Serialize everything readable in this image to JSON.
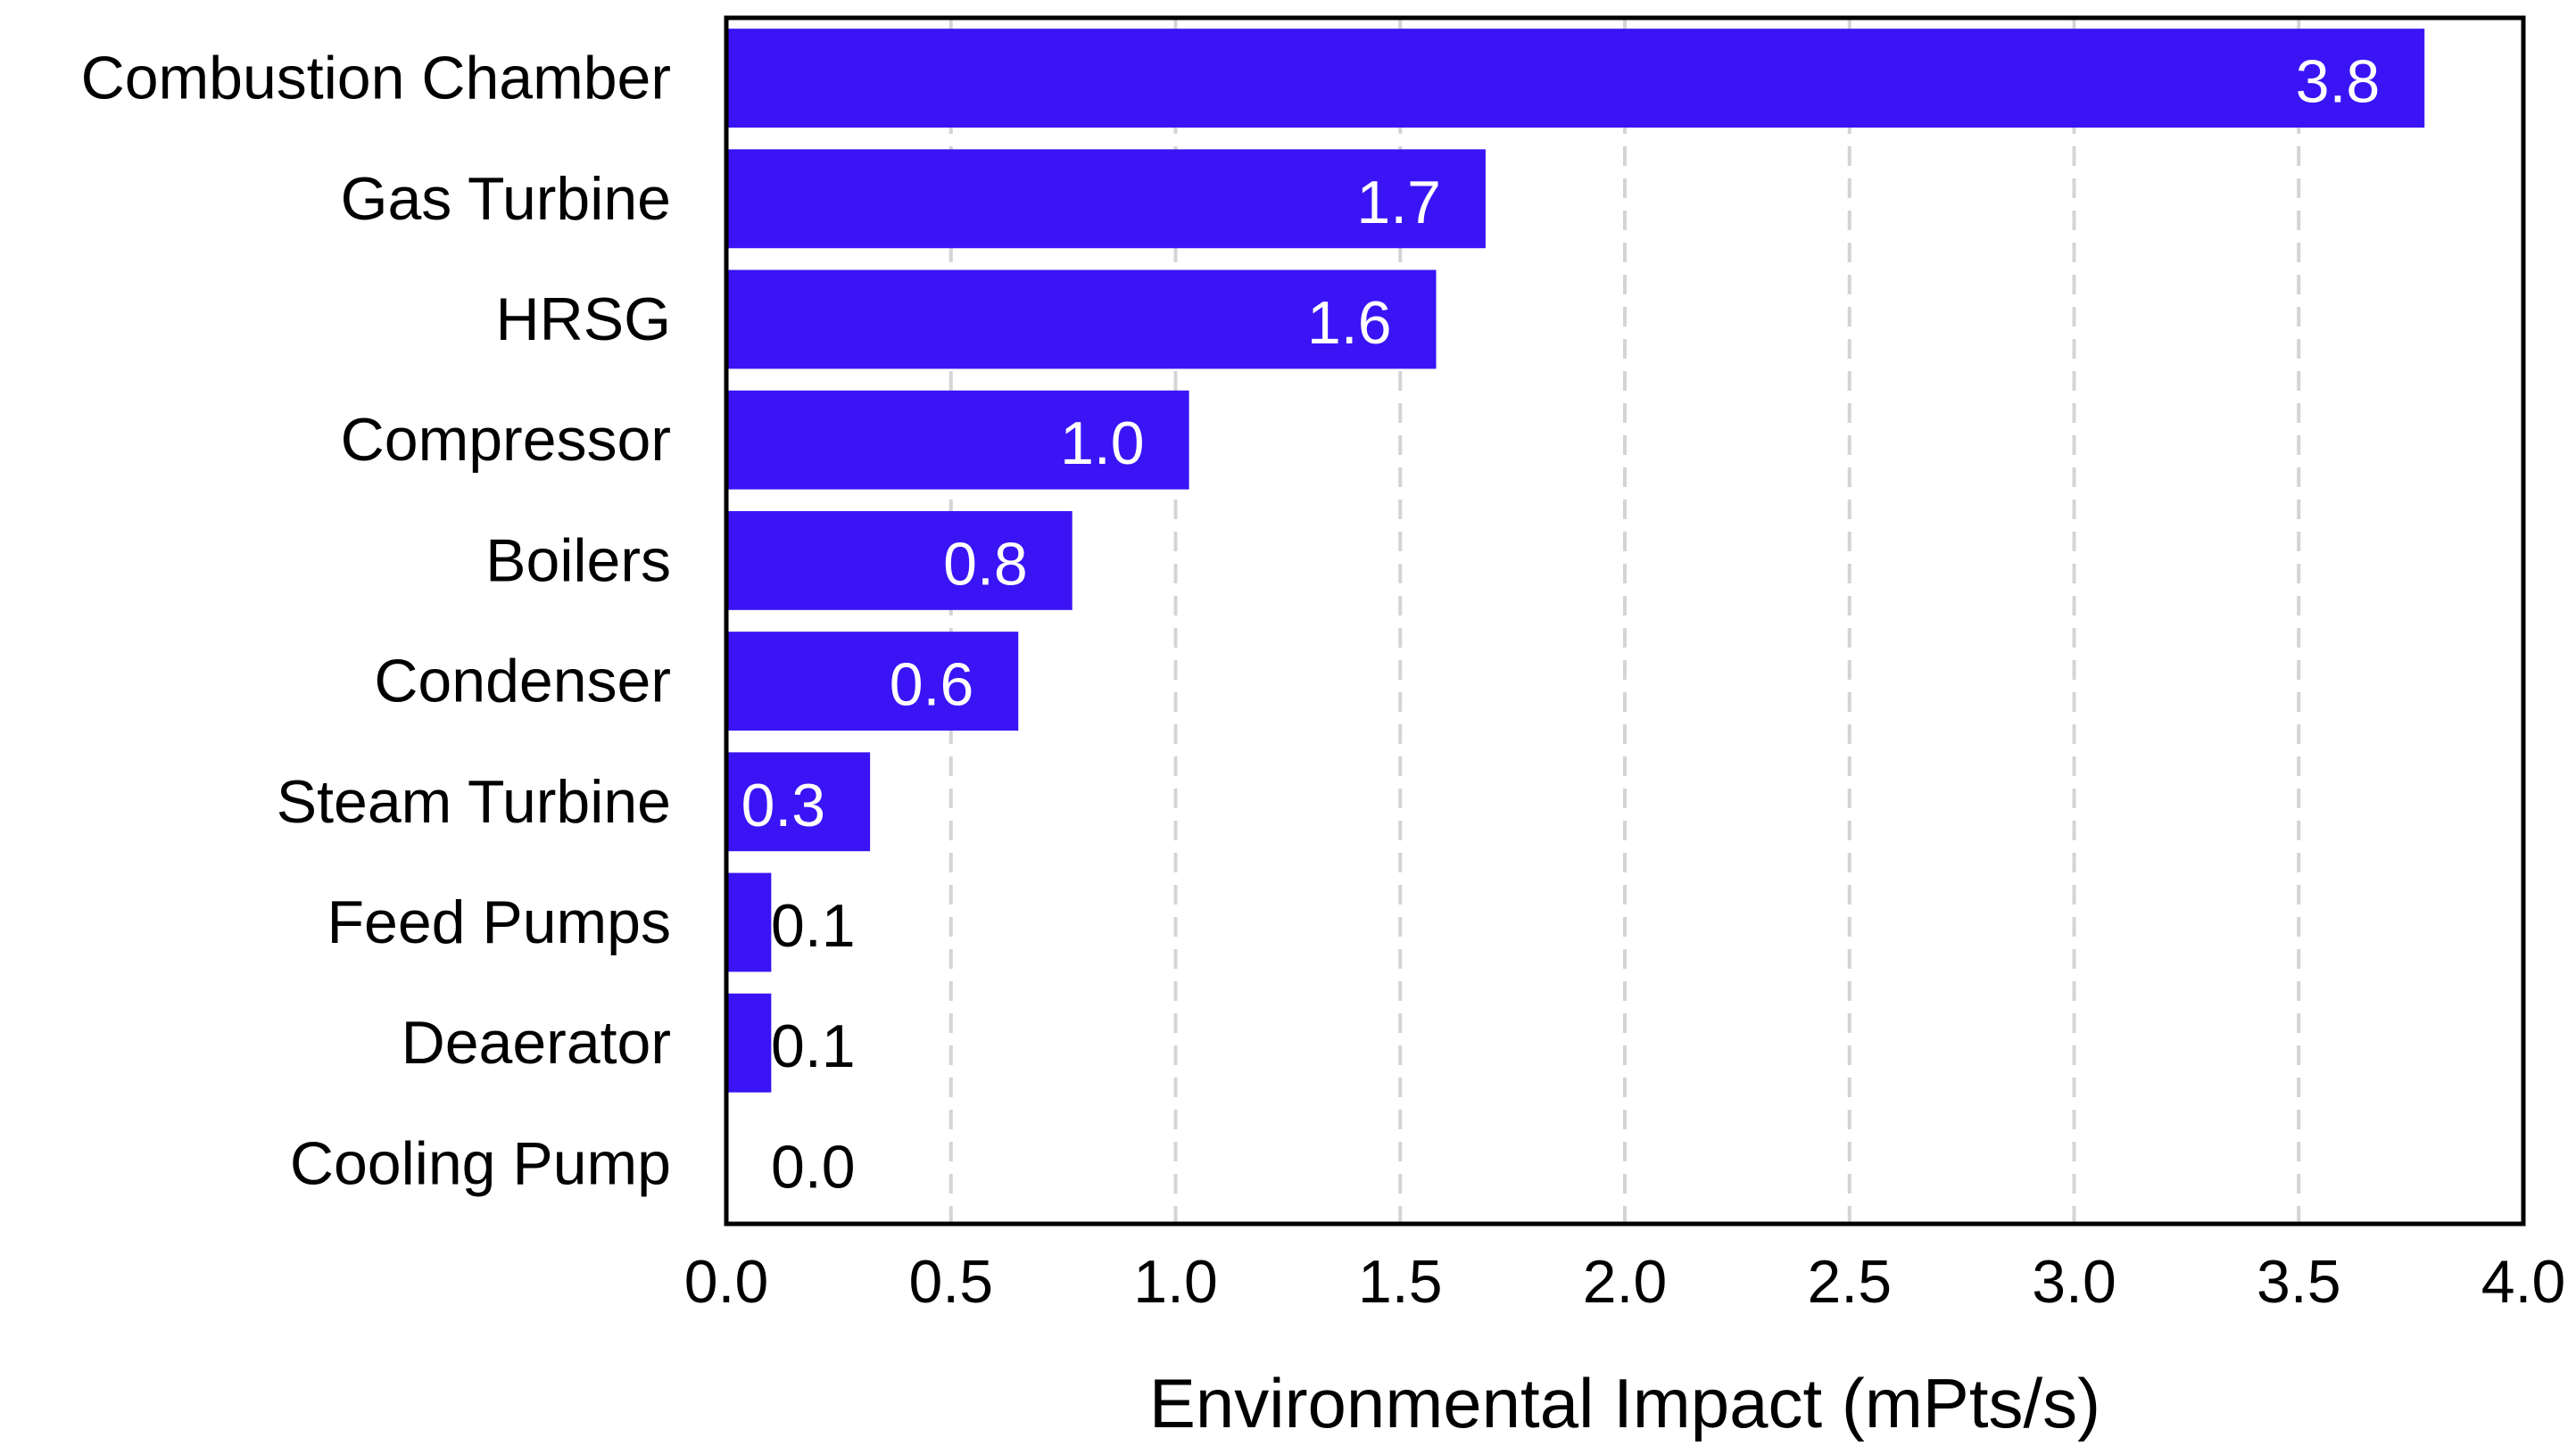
{
  "chart_data": {
    "type": "bar",
    "orientation": "horizontal",
    "title": "",
    "xlabel": "Environmental Impact (mPts/s)",
    "ylabel": "",
    "xlim": [
      0.0,
      4.0
    ],
    "x_ticks": [
      "0.0",
      "0.5",
      "1.0",
      "1.5",
      "2.0",
      "2.5",
      "3.0",
      "3.5",
      "4.0"
    ],
    "x_tick_values": [
      0.0,
      0.5,
      1.0,
      1.5,
      2.0,
      2.5,
      3.0,
      3.5,
      4.0
    ],
    "grid": "vertical dashed",
    "categories": [
      "Combustion Chamber",
      "Gas Turbine",
      "HRSG",
      "Compressor",
      "Boilers",
      "Condenser",
      "Steam Turbine",
      "Feed Pumps",
      "Deaerator",
      "Cooling Pump"
    ],
    "values": [
      3.78,
      1.69,
      1.58,
      1.03,
      0.77,
      0.65,
      0.32,
      0.1,
      0.1,
      0.0
    ],
    "data_labels": [
      "3.8",
      "1.7",
      "1.6",
      "1.0",
      "0.8",
      "0.6",
      "0.3",
      "0.1",
      "0.1",
      "0.0"
    ],
    "bar_color": "#3a14f5",
    "grid_color": "#d4d4d4",
    "axis_color": "#000000",
    "inside_label_color": "#ffffff",
    "outside_label_color": "#000000"
  }
}
